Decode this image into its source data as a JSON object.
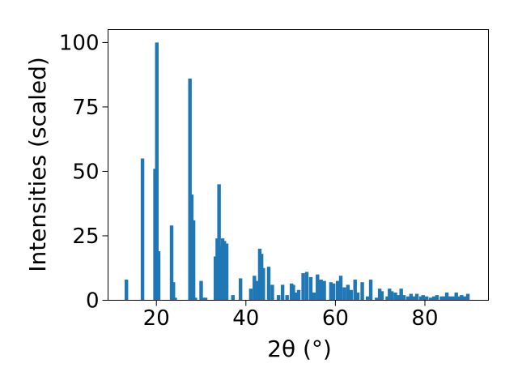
{
  "chart_data": {
    "type": "bar",
    "title": "",
    "xlabel": "2θ (°)",
    "ylabel": "Intensities (scaled)",
    "xlim": [
      9.2,
      94.2
    ],
    "ylim": [
      0,
      105
    ],
    "x_ticks": [
      20,
      40,
      60,
      80
    ],
    "y_ticks": [
      0,
      25,
      50,
      75,
      100
    ],
    "grid": false,
    "legend": "none",
    "bar_color": "#1f77b4",
    "bar_width": 0.8,
    "series": [
      {
        "x": [
          13.3,
          16.9,
          19.7,
          20.1,
          20.5,
          23.4,
          23.8,
          24.2,
          27.5,
          27.9,
          28.3,
          28.7,
          30.0,
          30.4,
          31.0,
          33.2,
          33.6,
          34.0,
          34.4,
          34.8,
          35.2,
          35.7,
          37.1,
          38.8,
          41.1,
          41.9,
          42.4,
          43.1,
          43.5,
          43.9,
          45.1,
          45.9,
          47.3,
          48.2,
          49.2,
          50.2,
          50.6,
          51.1,
          51.8,
          52.8,
          53.6,
          54.5,
          55.2,
          56.0,
          56.8,
          57.5,
          59.0,
          59.6,
          60.5,
          61.2,
          62.0,
          62.8,
          63.5,
          64.4,
          65.0,
          66.0,
          67.2,
          67.9,
          69.2,
          69.9,
          70.4,
          71.6,
          72.1,
          72.6,
          73.4,
          74.1,
          74.7,
          75.3,
          76.2,
          76.9,
          77.5,
          78.2,
          79.1,
          79.6,
          80.4,
          81.3,
          82.0,
          82.7,
          83.7,
          84.3,
          84.9,
          85.6,
          86.2,
          87.0,
          87.5,
          88.2,
          88.9,
          89.6
        ],
        "values": [
          8,
          55,
          51,
          100,
          19,
          29,
          7,
          1,
          86,
          41,
          31,
          1,
          7.5,
          1,
          1,
          17,
          24,
          45,
          21,
          24,
          23,
          22,
          2,
          8.5,
          4.5,
          9.5,
          7.5,
          20,
          18,
          12.5,
          13,
          6,
          2,
          6,
          2,
          6.5,
          6,
          3,
          4,
          10.5,
          11,
          9,
          3,
          10,
          8,
          7.5,
          7,
          6.5,
          7.5,
          9.5,
          5,
          6,
          4,
          8,
          3,
          7,
          1.5,
          8,
          1,
          4.5,
          3.5,
          1.5,
          4.5,
          3.5,
          3,
          2,
          4.5,
          2,
          1.5,
          2.5,
          1.5,
          2.5,
          1.5,
          2,
          1.5,
          1,
          1.5,
          2,
          1.5,
          1.5,
          3,
          1.5,
          1.5,
          3,
          1.5,
          2,
          1.5,
          2.5
        ]
      }
    ]
  }
}
